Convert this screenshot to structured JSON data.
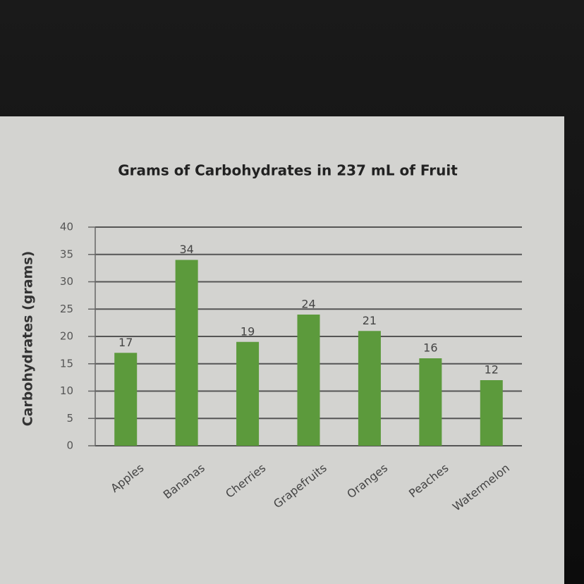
{
  "chart_data": {
    "type": "bar",
    "title": "Grams of Carbohydrates in 237 mL of Fruit",
    "y_label": "Carbohydrates (grams)",
    "categories": [
      "Apples",
      "Bananas",
      "Cherries",
      "Grapefruits",
      "Oranges",
      "Peaches",
      "Watermelon"
    ],
    "values": [
      17,
      34,
      19,
      24,
      21,
      16,
      12
    ],
    "color": "#5c9a3c",
    "ylim": [
      0,
      40
    ],
    "yticks": [
      0,
      5,
      10,
      15,
      20,
      25,
      30,
      35,
      40
    ],
    "grid": true
  }
}
